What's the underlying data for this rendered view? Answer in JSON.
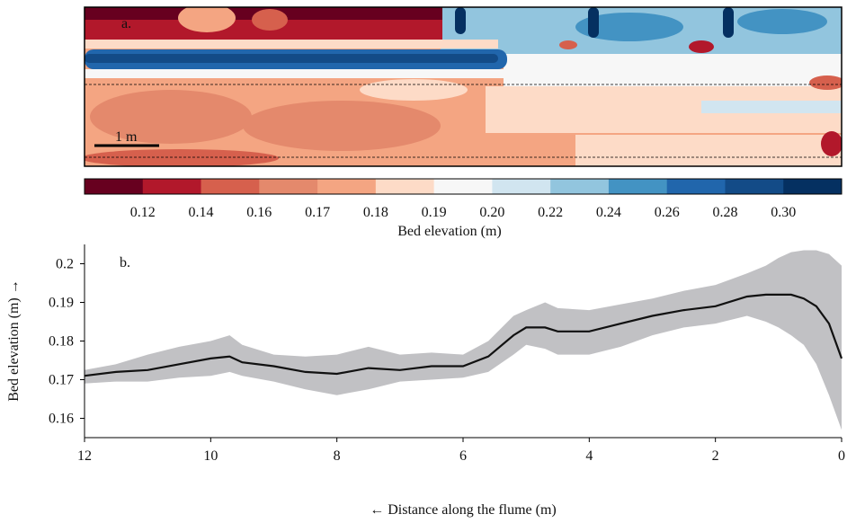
{
  "chart_data": [
    {
      "panel_label": "a.",
      "type": "heatmap",
      "scale_bar_label": "1 m",
      "colorbar": {
        "label": "Bed elevation (m)",
        "ticks": [
          "0.12",
          "0.14",
          "0.16",
          "0.17",
          "0.18",
          "0.19",
          "0.20",
          "0.22",
          "0.24",
          "0.26",
          "0.28",
          "0.30"
        ],
        "colors": [
          "#67001f",
          "#b2182b",
          "#d6604d",
          "#e4896c",
          "#f4a582",
          "#fddbc7",
          "#f7f7f7",
          "#d1e5f0",
          "#92c5de",
          "#4393c3",
          "#2166ac",
          "#134b87",
          "#053061"
        ]
      }
    },
    {
      "panel_label": "b.",
      "type": "line",
      "xlabel": "← Distance along the flume (m)",
      "ylabel": "Bed elevation (m) →",
      "xlim": [
        12,
        0
      ],
      "ylim": [
        0.155,
        0.205
      ],
      "xticks": [
        12,
        10,
        8,
        6,
        4,
        2,
        0
      ],
      "yticks": [
        "0.16",
        "0.17",
        "0.18",
        "0.19",
        "0.2"
      ],
      "series": [
        {
          "x": [
            12,
            11.5,
            11,
            10.5,
            10,
            9.7,
            9.5,
            9,
            8.5,
            8,
            7.5,
            7,
            6.5,
            6,
            5.6,
            5.2,
            5,
            4.7,
            4.5,
            4,
            3.5,
            3,
            2.5,
            2,
            1.5,
            1.2,
            1,
            0.8,
            0.6,
            0.4,
            0.2,
            0
          ],
          "mean": [
            0.171,
            0.172,
            0.1725,
            0.174,
            0.1755,
            0.176,
            0.1745,
            0.1735,
            0.172,
            0.1715,
            0.173,
            0.1725,
            0.1735,
            0.1735,
            0.176,
            0.1815,
            0.1835,
            0.1835,
            0.1825,
            0.1825,
            0.1845,
            0.1865,
            0.188,
            0.189,
            0.1915,
            0.192,
            0.192,
            0.192,
            0.191,
            0.189,
            0.1845,
            0.1755
          ],
          "upper": [
            0.1725,
            0.174,
            0.1765,
            0.1785,
            0.18,
            0.1815,
            0.179,
            0.1765,
            0.176,
            0.1765,
            0.1785,
            0.1765,
            0.177,
            0.1765,
            0.18,
            0.1865,
            0.188,
            0.19,
            0.1885,
            0.188,
            0.1895,
            0.191,
            0.193,
            0.1945,
            0.1975,
            0.1995,
            0.2015,
            0.203,
            0.2035,
            0.2035,
            0.2025,
            0.1995
          ],
          "lower": [
            0.169,
            0.1695,
            0.1695,
            0.1705,
            0.171,
            0.172,
            0.171,
            0.1695,
            0.1675,
            0.166,
            0.1675,
            0.1695,
            0.17,
            0.1705,
            0.172,
            0.1765,
            0.179,
            0.178,
            0.1765,
            0.1765,
            0.1785,
            0.1815,
            0.1835,
            0.1845,
            0.1865,
            0.185,
            0.1835,
            0.1815,
            0.179,
            0.174,
            0.166,
            0.157
          ]
        }
      ]
    }
  ]
}
